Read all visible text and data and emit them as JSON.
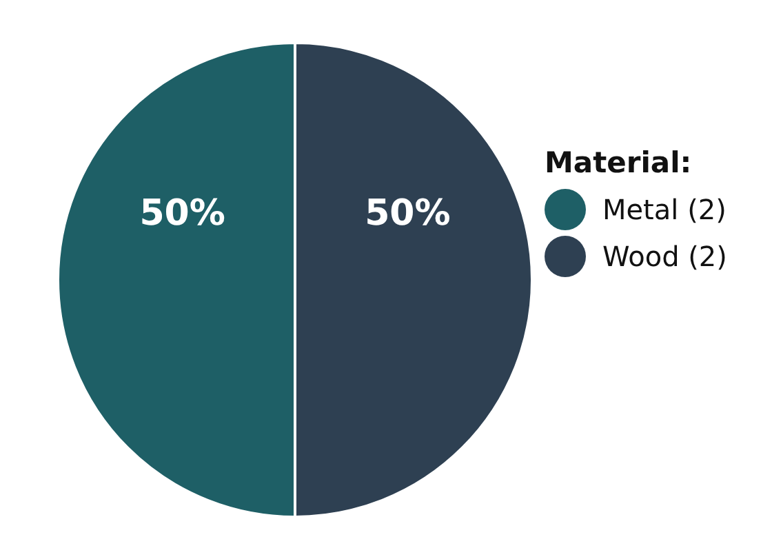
{
  "chart_data": {
    "type": "pie",
    "legend_title": "Material:",
    "categories": [
      "Metal (2)",
      "Wood (2)"
    ],
    "values": [
      50,
      50
    ],
    "colors": [
      "#1e5f66",
      "#2e4052"
    ],
    "value_labels": [
      "50%",
      "50%"
    ],
    "legend": "right"
  }
}
